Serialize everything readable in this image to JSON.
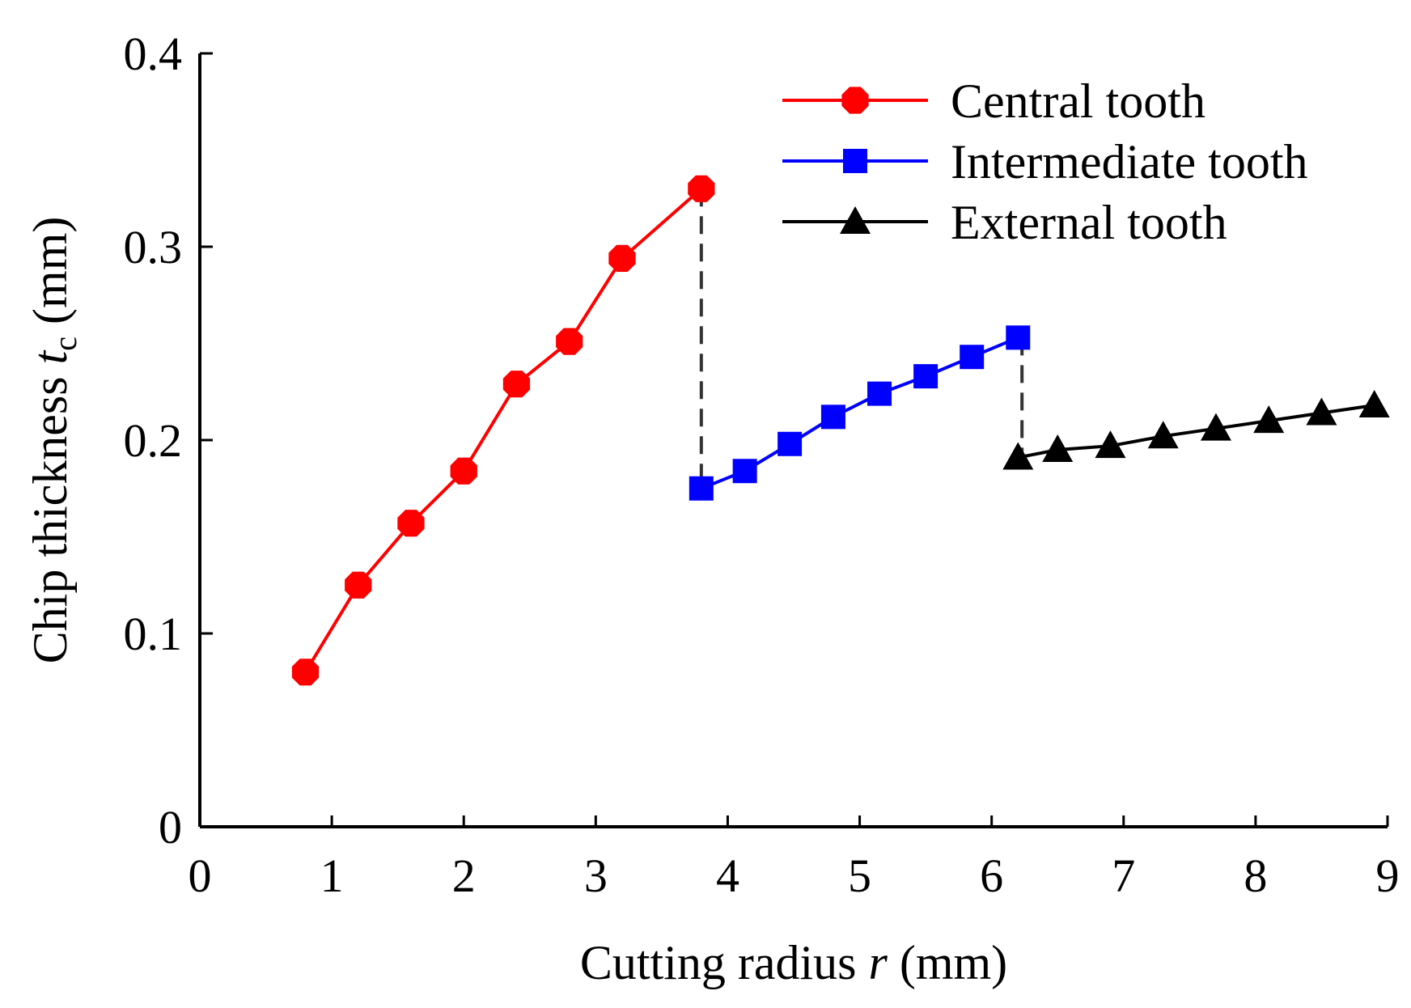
{
  "chart_data": {
    "type": "line",
    "xlabel": "Cutting radius",
    "xlabel_var": "r",
    "xlabel_unit": "(mm)",
    "ylabel": "Chip thickness",
    "ylabel_var": "t",
    "ylabel_sub": "c",
    "ylabel_unit": "(mm)",
    "xlim": [
      0,
      9
    ],
    "ylim": [
      0,
      0.4
    ],
    "xticks": [
      "0",
      "1",
      "2",
      "3",
      "4",
      "5",
      "6",
      "7",
      "8",
      "9"
    ],
    "yticks": [
      "0",
      "0.1",
      "0.2",
      "0.3",
      "0.4"
    ],
    "grid": false,
    "legend_position": "top-right",
    "series": [
      {
        "name": "Central tooth",
        "color": "#ff0000",
        "marker": "octagon",
        "x": [
          0.8,
          1.2,
          1.6,
          2.0,
          2.4,
          2.8,
          3.2,
          3.8
        ],
        "y": [
          0.08,
          0.125,
          0.157,
          0.184,
          0.229,
          0.251,
          0.294,
          0.33
        ]
      },
      {
        "name": "Intermediate tooth",
        "color": "#0000ff",
        "marker": "square",
        "x": [
          3.8,
          4.13,
          4.47,
          4.8,
          5.15,
          5.5,
          5.85,
          6.2
        ],
        "y": [
          0.175,
          0.184,
          0.198,
          0.212,
          0.224,
          0.233,
          0.243,
          0.253
        ]
      },
      {
        "name": "External tooth",
        "color": "#000000",
        "marker": "triangle",
        "x": [
          6.2,
          6.5,
          6.9,
          7.3,
          7.7,
          8.1,
          8.5,
          8.9
        ],
        "y": [
          0.191,
          0.195,
          0.197,
          0.202,
          0.206,
          0.21,
          0.214,
          0.218
        ]
      }
    ],
    "transitions": [
      {
        "x": 3.8,
        "y_from": 0.33,
        "y_to": 0.175,
        "color": "#333333"
      },
      {
        "x": 6.23,
        "y_from": 0.253,
        "y_to": 0.185,
        "color": "#333333"
      }
    ]
  }
}
